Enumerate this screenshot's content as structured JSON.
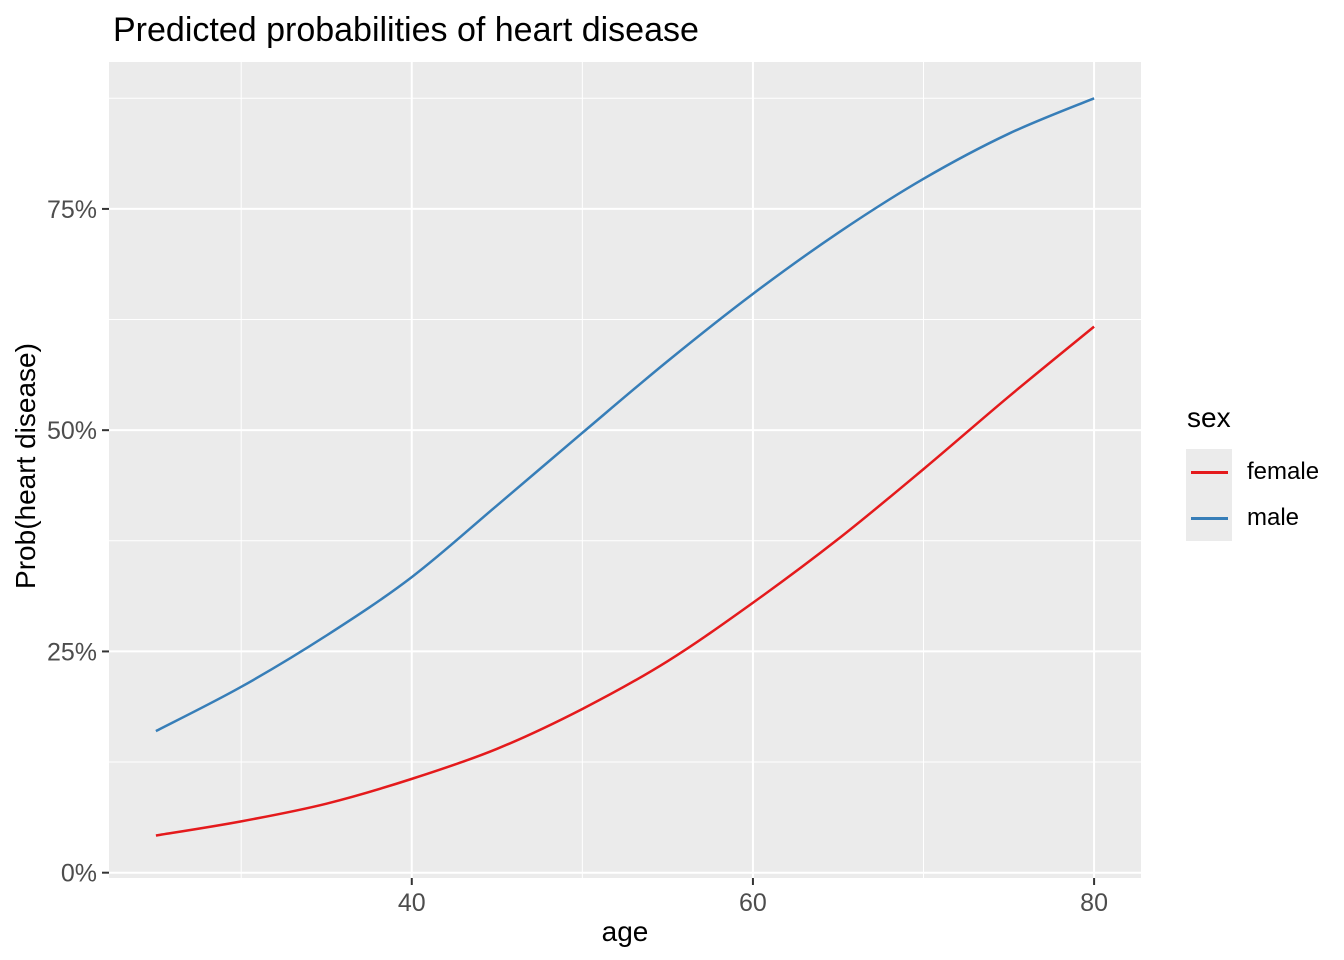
{
  "chart_data": {
    "type": "line",
    "title": "Predicted probabilities of heart disease",
    "xlabel": "age",
    "ylabel": "Prob(heart disease)",
    "x": [
      25,
      30,
      35,
      40,
      45,
      50,
      55,
      60,
      65,
      70,
      75,
      80
    ],
    "series": [
      {
        "name": "female",
        "color": "#E41A1C",
        "values": [
          4.2,
          5.8,
          7.8,
          10.6,
          14.0,
          18.5,
          23.9,
          30.5,
          37.7,
          45.6,
          53.8,
          61.7
        ]
      },
      {
        "name": "male",
        "color": "#377EB8",
        "values": [
          16.0,
          21.0,
          26.8,
          33.4,
          41.5,
          49.7,
          57.8,
          65.4,
          72.3,
          78.4,
          83.5,
          87.5
        ]
      }
    ],
    "value_unit": "%",
    "xlim": [
      22.25,
      82.75
    ],
    "ylim": [
      -0.6,
      91.6
    ],
    "x_ticks": {
      "values": [
        40,
        60,
        80
      ],
      "labels": [
        "40",
        "60",
        "80"
      ],
      "minor": [
        30,
        50,
        70
      ]
    },
    "y_ticks": {
      "values": [
        0,
        25,
        50,
        75
      ],
      "labels": [
        "0%",
        "25%",
        "50%",
        "75%"
      ],
      "minor": [
        12.5,
        37.5,
        62.5,
        87.5
      ]
    },
    "legend": {
      "title": "sex",
      "position": "right",
      "entries": [
        "female",
        "male"
      ]
    },
    "grid": true,
    "panel_bg": "#EBEBEB",
    "grid_color": "#FFFFFF",
    "tick_mark_color": "#333333",
    "tick_label_color": "#4D4D4D"
  }
}
